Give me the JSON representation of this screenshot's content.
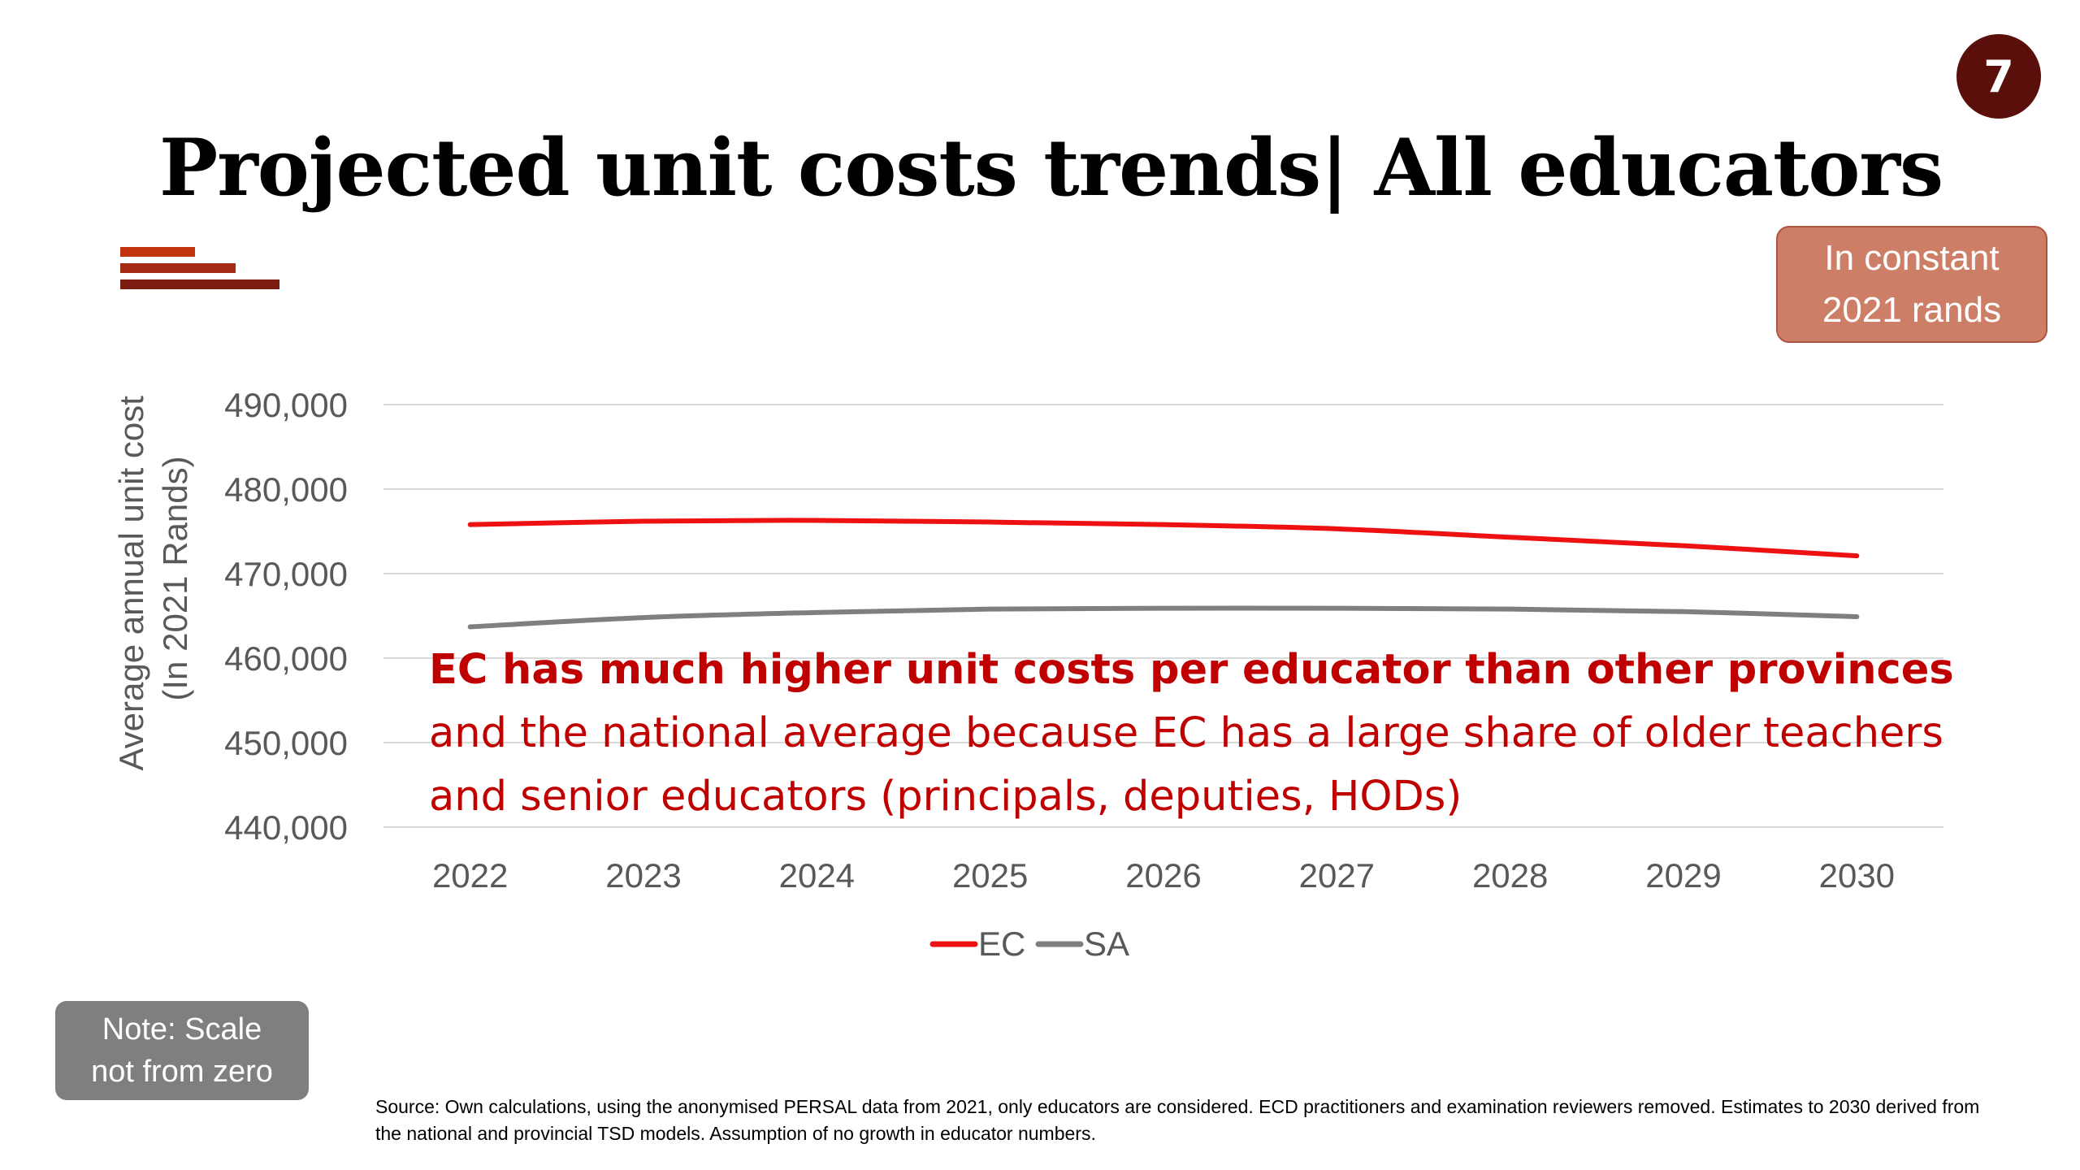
{
  "slide_number": "7",
  "title": "Projected unit costs trends| All educators",
  "colors": {
    "accent_bars": [
      "#c0330d",
      "#a52a14",
      "#7c1c10"
    ],
    "ec_line": "#ee1111",
    "sa_line": "#7f7f7f",
    "callout_text": "#c00000"
  },
  "units_badge": {
    "line1": "In constant",
    "line2": "2021 rands"
  },
  "callout": {
    "bold": "EC has much higher unit costs per educator than other provinces",
    "rest": " and the national average because EC has a large share of older teachers and senior educators (principals, deputies, HODs)"
  },
  "note_badge": {
    "line1": "Note: Scale",
    "line2": "not from zero"
  },
  "source": "Source: Own calculations, using the anonymised PERSAL data from 2021, only educators are considered. ECD practitioners and examination reviewers removed. Estimates to 2030 derived from the national and provincial TSD models. Assumption of no growth in educator numbers.",
  "chart_data": {
    "type": "line",
    "x": [
      "2022",
      "2023",
      "2024",
      "2025",
      "2026",
      "2027",
      "2028",
      "2029",
      "2030"
    ],
    "series": [
      {
        "name": "EC",
        "color": "#ee1111",
        "values": [
          475800,
          476200,
          476300,
          476100,
          475800,
          475300,
          474300,
          473300,
          472100
        ]
      },
      {
        "name": "SA",
        "color": "#7f7f7f",
        "values": [
          463700,
          464800,
          465400,
          465800,
          465900,
          465900,
          465800,
          465500,
          464900
        ]
      }
    ],
    "ylim": [
      440000,
      490000
    ],
    "yticks": [
      440000,
      450000,
      460000,
      470000,
      480000,
      490000
    ],
    "ytick_labels": [
      "440,000",
      "450,000",
      "460,000",
      "470,000",
      "480,000",
      "490,000"
    ],
    "ylabel_line1": "Average annual unit cost",
    "ylabel_line2": "(In 2021 Rands)",
    "xlabel": "",
    "grid": true,
    "legend_position": "bottom"
  }
}
